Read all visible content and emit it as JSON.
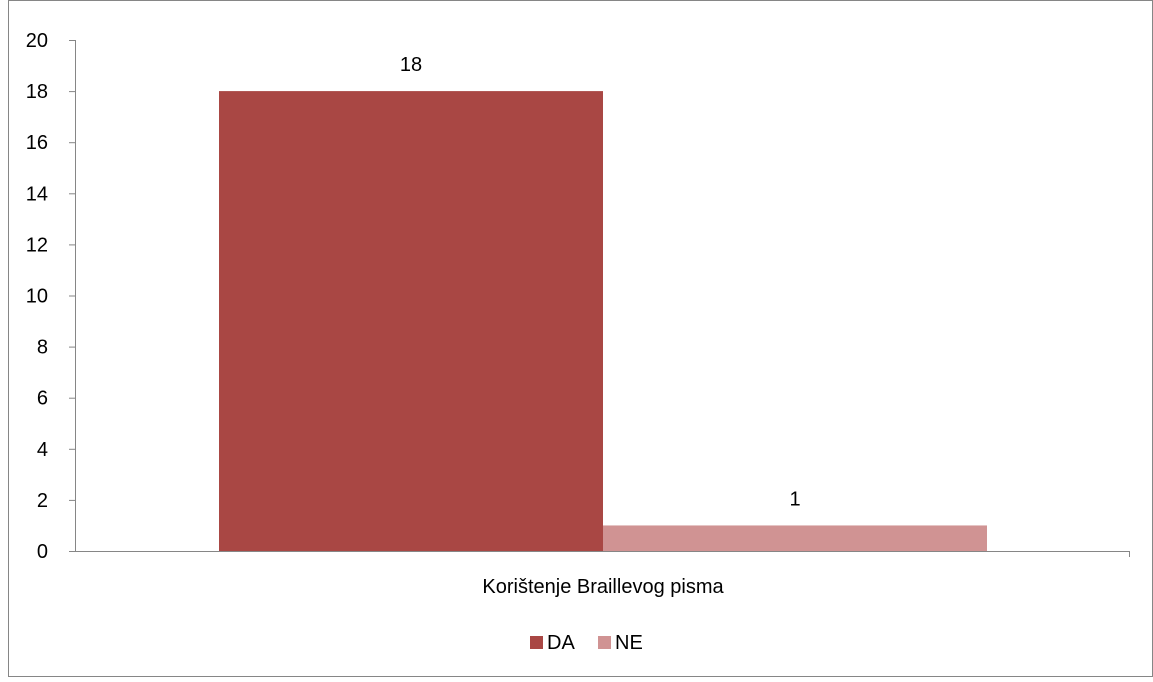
{
  "chart_data": {
    "type": "bar",
    "categories": [
      "Korištenje Braillevog pisma"
    ],
    "series": [
      {
        "name": "DA",
        "values": [
          18
        ],
        "color": "#A94744"
      },
      {
        "name": "NE",
        "values": [
          1
        ],
        "color": "#D09393"
      }
    ],
    "data_labels": [
      "18",
      "1"
    ],
    "xlabel": "",
    "ylabel": "",
    "ylim": [
      0,
      20
    ],
    "yticks": [
      0,
      2,
      4,
      6,
      8,
      10,
      12,
      14,
      16,
      18,
      20
    ],
    "ytick_labels": [
      "0",
      "2",
      "4",
      "6",
      "8",
      "10",
      "12",
      "14",
      "16",
      "18",
      "20"
    ],
    "grid": false,
    "legend": {
      "position": "bottom",
      "entries": [
        "DA",
        "NE"
      ]
    }
  }
}
